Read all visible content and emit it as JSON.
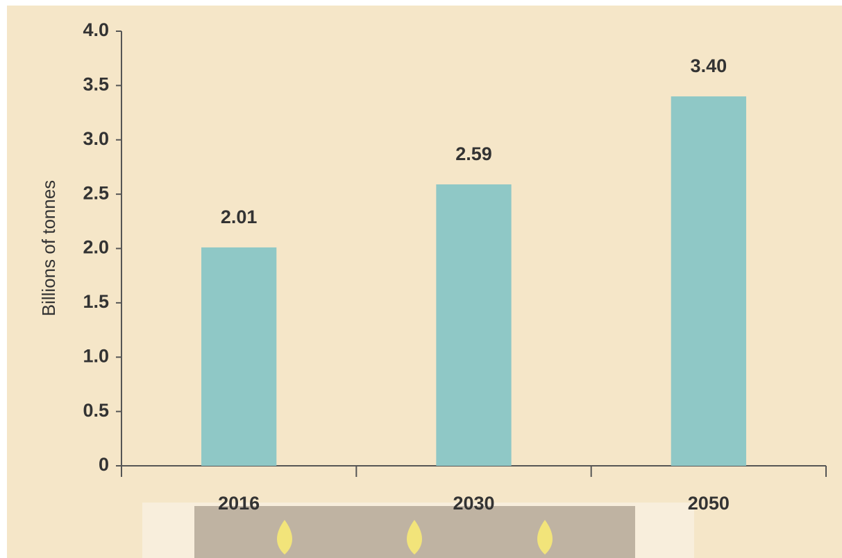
{
  "chart_data": {
    "type": "bar",
    "y_label": "Billions of tonnes",
    "categories": [
      "2016",
      "2030",
      "2050"
    ],
    "values": [
      2.01,
      2.59,
      3.4
    ],
    "value_labels": [
      "2.01",
      "2.59",
      "3.40"
    ],
    "color": "#8fc8c6",
    "ylim": [
      0,
      4
    ],
    "yticks": [
      0,
      0.5,
      {
        "value": 1,
        "label": "1.0"
      },
      1.5,
      {
        "value": 2,
        "label": "2.0"
      },
      2.5,
      {
        "value": 3,
        "label": "3.0"
      },
      3.5,
      {
        "value": 4,
        "label": "4.0"
      }
    ],
    "grid": false
  }
}
